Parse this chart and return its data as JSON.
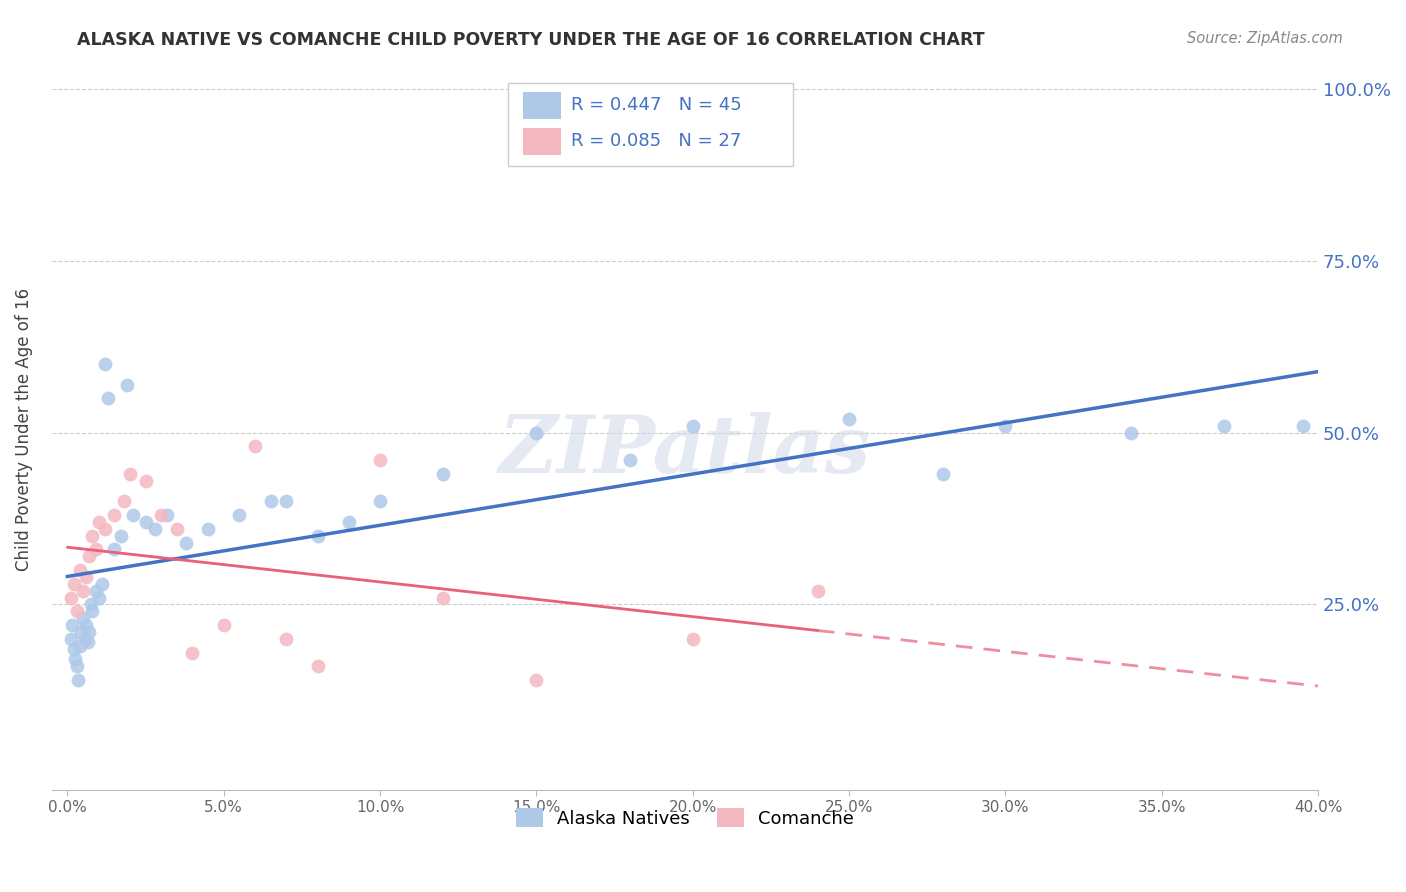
{
  "title": "ALASKA NATIVE VS COMANCHE CHILD POVERTY UNDER THE AGE OF 16 CORRELATION CHART",
  "source": "Source: ZipAtlas.com",
  "ylabel": "Child Poverty Under the Age of 16",
  "alaska_R": 0.447,
  "alaska_N": 45,
  "comanche_R": 0.085,
  "comanche_N": 27,
  "alaska_color": "#aec8e8",
  "alaska_line_color": "#4472c4",
  "comanche_color": "#f4b8c1",
  "comanche_line_color": "#e8607a",
  "background_color": "#ffffff",
  "watermark": "ZIPatlas",
  "alaska_x": [
    0.1,
    0.15,
    0.2,
    0.25,
    0.3,
    0.35,
    0.4,
    0.45,
    0.5,
    0.55,
    0.6,
    0.65,
    0.7,
    0.75,
    0.8,
    0.9,
    1.0,
    1.1,
    1.2,
    1.3,
    1.5,
    1.7,
    1.9,
    2.1,
    2.5,
    2.8,
    3.2,
    3.8,
    4.5,
    5.5,
    6.5,
    7.0,
    8.0,
    9.0,
    10.0,
    12.0,
    15.0,
    18.0,
    20.0,
    25.0,
    28.0,
    30.0,
    34.0,
    37.0,
    39.5
  ],
  "alaska_y": [
    20.0,
    22.0,
    18.5,
    17.0,
    16.0,
    14.0,
    19.0,
    21.0,
    23.0,
    20.0,
    22.0,
    19.5,
    21.0,
    25.0,
    24.0,
    27.0,
    26.0,
    28.0,
    60.0,
    55.0,
    33.0,
    35.0,
    57.0,
    38.0,
    37.0,
    36.0,
    38.0,
    34.0,
    36.0,
    38.0,
    40.0,
    40.0,
    35.0,
    37.0,
    40.0,
    44.0,
    50.0,
    46.0,
    51.0,
    52.0,
    44.0,
    51.0,
    50.0,
    51.0,
    51.0
  ],
  "comanche_x": [
    0.1,
    0.2,
    0.3,
    0.4,
    0.5,
    0.6,
    0.7,
    0.8,
    0.9,
    1.0,
    1.2,
    1.5,
    1.8,
    2.0,
    2.5,
    3.0,
    3.5,
    4.0,
    5.0,
    6.0,
    7.0,
    8.0,
    10.0,
    12.0,
    15.0,
    20.0,
    24.0
  ],
  "comanche_y": [
    26.0,
    28.0,
    24.0,
    30.0,
    27.0,
    29.0,
    32.0,
    35.0,
    33.0,
    37.0,
    36.0,
    38.0,
    40.0,
    44.0,
    43.0,
    38.0,
    36.0,
    18.0,
    22.0,
    48.0,
    20.0,
    16.0,
    46.0,
    26.0,
    14.0,
    20.0,
    27.0
  ],
  "xlim": [
    0,
    40
  ],
  "ylim": [
    0,
    100
  ],
  "x_ticks": [
    0,
    5,
    10,
    15,
    20,
    25,
    30,
    35,
    40
  ],
  "y_ticks": [
    0,
    25,
    50,
    75,
    100
  ],
  "y_tick_labels_right": [
    "",
    "25.0%",
    "50.0%",
    "75.0%",
    "100.0%"
  ]
}
